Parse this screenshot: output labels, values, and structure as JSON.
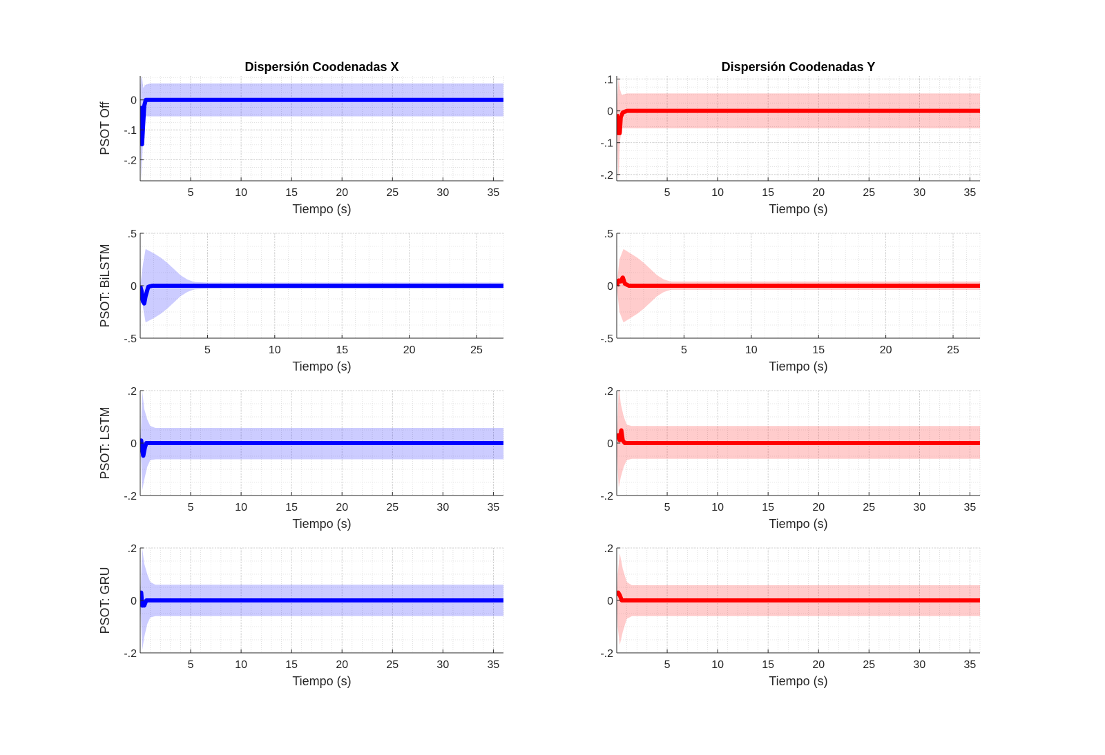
{
  "figure": {
    "titles": [
      "Dispersión Coodenadas X",
      "Dispersión Coodenadas Y"
    ]
  },
  "chart_data": [
    {
      "type": "area",
      "row": 0,
      "col": 0,
      "title": "Dispersión Coodenadas X",
      "xlabel": "Tiempo (s)",
      "ylabel": "PSOT Off",
      "xlim": [
        0,
        36
      ],
      "ylim": [
        -0.27,
        0.08
      ],
      "xticks": [
        5,
        10,
        15,
        20,
        25,
        30,
        35
      ],
      "yticks": [
        -0.2,
        -0.1,
        0
      ],
      "grid": true,
      "minor_grid": true,
      "color": "#0000ff",
      "mean": [
        [
          0,
          -0.02
        ],
        [
          0.08,
          -0.1
        ],
        [
          0.18,
          -0.15
        ],
        [
          0.28,
          -0.09
        ],
        [
          0.4,
          -0.02
        ],
        [
          0.55,
          0
        ],
        [
          36,
          0
        ]
      ],
      "band_upper": [
        [
          0,
          0.01
        ],
        [
          0.1,
          0.08
        ],
        [
          0.2,
          0.07
        ],
        [
          0.3,
          0.04
        ],
        [
          0.5,
          0.05
        ],
        [
          1,
          0.055
        ],
        [
          36,
          0.055
        ]
      ],
      "band_lower": [
        [
          0,
          -0.02
        ],
        [
          0.1,
          -0.27
        ],
        [
          0.2,
          -0.2
        ],
        [
          0.3,
          -0.1
        ],
        [
          0.5,
          -0.055
        ],
        [
          1,
          -0.055
        ],
        [
          36,
          -0.055
        ]
      ]
    },
    {
      "type": "area",
      "row": 0,
      "col": 1,
      "title": "Dispersión Coodenadas Y",
      "xlabel": "Tiempo (s)",
      "ylabel": "",
      "xlim": [
        0,
        36
      ],
      "ylim": [
        -0.22,
        0.11
      ],
      "xticks": [
        5,
        10,
        15,
        20,
        25,
        30,
        35
      ],
      "yticks": [
        -0.2,
        -0.1,
        0,
        0.1
      ],
      "grid": true,
      "minor_grid": true,
      "color": "#ff0000",
      "mean": [
        [
          0,
          -0.01
        ],
        [
          0.08,
          -0.05
        ],
        [
          0.15,
          -0.07
        ],
        [
          0.3,
          -0.07
        ],
        [
          0.4,
          -0.02
        ],
        [
          0.6,
          -0.005
        ],
        [
          1,
          0
        ],
        [
          36,
          0
        ]
      ],
      "band_upper": [
        [
          0,
          0
        ],
        [
          0.1,
          0.06
        ],
        [
          0.2,
          0.11
        ],
        [
          0.3,
          0.07
        ],
        [
          0.5,
          0.05
        ],
        [
          1,
          0.055
        ],
        [
          36,
          0.055
        ]
      ],
      "band_lower": [
        [
          0,
          0
        ],
        [
          0.1,
          -0.15
        ],
        [
          0.2,
          -0.22
        ],
        [
          0.3,
          -0.1
        ],
        [
          0.5,
          -0.055
        ],
        [
          1,
          -0.055
        ],
        [
          36,
          -0.055
        ]
      ]
    },
    {
      "type": "area",
      "row": 1,
      "col": 0,
      "title": "",
      "xlabel": "Tiempo (s)",
      "ylabel": "PSOT: BiLSTM",
      "xlim": [
        0,
        27
      ],
      "ylim": [
        -0.5,
        0.5
      ],
      "xticks": [
        5,
        10,
        15,
        20,
        25
      ],
      "yticks": [
        -0.5,
        0,
        0.5
      ],
      "grid": true,
      "minor_grid": true,
      "color": "#0000ff",
      "mean": [
        [
          0,
          0
        ],
        [
          0.1,
          -0.05
        ],
        [
          0.2,
          -0.15
        ],
        [
          0.3,
          -0.17
        ],
        [
          0.4,
          -0.1
        ],
        [
          0.6,
          -0.01
        ],
        [
          0.9,
          0
        ],
        [
          27,
          0
        ]
      ],
      "band_upper": [
        [
          0,
          0
        ],
        [
          0.2,
          0.2
        ],
        [
          0.4,
          0.35
        ],
        [
          1,
          0.31
        ],
        [
          1.5,
          0.27
        ],
        [
          2,
          0.22
        ],
        [
          2.5,
          0.16
        ],
        [
          3,
          0.1
        ],
        [
          3.5,
          0.06
        ],
        [
          4,
          0.035
        ],
        [
          5,
          0.03
        ],
        [
          27,
          0.03
        ]
      ],
      "band_lower": [
        [
          0,
          0
        ],
        [
          0.2,
          -0.2
        ],
        [
          0.4,
          -0.35
        ],
        [
          1,
          -0.31
        ],
        [
          1.5,
          -0.27
        ],
        [
          2,
          -0.22
        ],
        [
          2.5,
          -0.16
        ],
        [
          3,
          -0.1
        ],
        [
          3.5,
          -0.06
        ],
        [
          4,
          -0.035
        ],
        [
          5,
          -0.03
        ],
        [
          27,
          -0.03
        ]
      ]
    },
    {
      "type": "area",
      "row": 1,
      "col": 1,
      "title": "",
      "xlabel": "Tiempo (s)",
      "ylabel": "",
      "xlim": [
        0,
        27
      ],
      "ylim": [
        -0.5,
        0.5
      ],
      "xticks": [
        5,
        10,
        15,
        20,
        25
      ],
      "yticks": [
        -0.5,
        0,
        0.5
      ],
      "grid": true,
      "minor_grid": true,
      "color": "#ff0000",
      "mean": [
        [
          0,
          0
        ],
        [
          0.15,
          0.05
        ],
        [
          0.3,
          0.04
        ],
        [
          0.45,
          0.08
        ],
        [
          0.6,
          0.02
        ],
        [
          0.9,
          0
        ],
        [
          27,
          0
        ]
      ],
      "band_upper": [
        [
          0,
          0
        ],
        [
          0.2,
          0.25
        ],
        [
          0.5,
          0.35
        ],
        [
          1,
          0.31
        ],
        [
          1.5,
          0.27
        ],
        [
          2,
          0.22
        ],
        [
          2.5,
          0.16
        ],
        [
          3,
          0.1
        ],
        [
          3.5,
          0.06
        ],
        [
          4,
          0.04
        ],
        [
          5,
          0.04
        ],
        [
          27,
          0.04
        ]
      ],
      "band_lower": [
        [
          0,
          0
        ],
        [
          0.2,
          -0.25
        ],
        [
          0.5,
          -0.35
        ],
        [
          1,
          -0.31
        ],
        [
          1.5,
          -0.27
        ],
        [
          2,
          -0.22
        ],
        [
          2.5,
          -0.16
        ],
        [
          3,
          -0.1
        ],
        [
          3.5,
          -0.06
        ],
        [
          4,
          -0.04
        ],
        [
          5,
          -0.04
        ],
        [
          27,
          -0.04
        ]
      ]
    },
    {
      "type": "area",
      "row": 2,
      "col": 0,
      "title": "",
      "xlabel": "Tiempo (s)",
      "ylabel": "PSOT: LSTM",
      "xlim": [
        0,
        36
      ],
      "ylim": [
        -0.2,
        0.2
      ],
      "xticks": [
        5,
        10,
        15,
        20,
        25,
        30,
        35
      ],
      "yticks": [
        -0.2,
        0,
        0.2
      ],
      "grid": true,
      "minor_grid": true,
      "color": "#0000ff",
      "mean": [
        [
          0,
          0
        ],
        [
          0.1,
          0.01
        ],
        [
          0.2,
          -0.02
        ],
        [
          0.3,
          -0.05
        ],
        [
          0.45,
          -0.02
        ],
        [
          0.6,
          0
        ],
        [
          36,
          0
        ]
      ],
      "band_upper": [
        [
          0,
          0
        ],
        [
          0.1,
          0.08
        ],
        [
          0.2,
          0.2
        ],
        [
          0.4,
          0.13
        ],
        [
          0.7,
          0.09
        ],
        [
          1,
          0.065
        ],
        [
          1.5,
          0.058
        ],
        [
          36,
          0.058
        ]
      ],
      "band_lower": [
        [
          0,
          0
        ],
        [
          0.1,
          -0.08
        ],
        [
          0.2,
          -0.18
        ],
        [
          0.4,
          -0.14
        ],
        [
          0.7,
          -0.09
        ],
        [
          1,
          -0.065
        ],
        [
          1.5,
          -0.062
        ],
        [
          36,
          -0.062
        ]
      ]
    },
    {
      "type": "area",
      "row": 2,
      "col": 1,
      "title": "",
      "xlabel": "Tiempo (s)",
      "ylabel": "",
      "xlim": [
        0,
        36
      ],
      "ylim": [
        -0.2,
        0.2
      ],
      "xticks": [
        5,
        10,
        15,
        20,
        25,
        30,
        35
      ],
      "yticks": [
        -0.2,
        0,
        0.2
      ],
      "grid": true,
      "minor_grid": true,
      "color": "#ff0000",
      "mean": [
        [
          0,
          0.02
        ],
        [
          0.15,
          0.03
        ],
        [
          0.3,
          0.01
        ],
        [
          0.45,
          0.05
        ],
        [
          0.6,
          0.01
        ],
        [
          0.8,
          0
        ],
        [
          36,
          0
        ]
      ],
      "band_upper": [
        [
          0,
          0
        ],
        [
          0.1,
          0.1
        ],
        [
          0.2,
          0.22
        ],
        [
          0.4,
          0.15
        ],
        [
          0.7,
          0.1
        ],
        [
          1,
          0.07
        ],
        [
          1.5,
          0.065
        ],
        [
          36,
          0.065
        ]
      ],
      "band_lower": [
        [
          0,
          0
        ],
        [
          0.1,
          -0.1
        ],
        [
          0.2,
          -0.17
        ],
        [
          0.4,
          -0.13
        ],
        [
          0.7,
          -0.09
        ],
        [
          1,
          -0.065
        ],
        [
          1.5,
          -0.06
        ],
        [
          36,
          -0.06
        ]
      ]
    },
    {
      "type": "area",
      "row": 3,
      "col": 0,
      "title": "",
      "xlabel": "Tiempo (s)",
      "ylabel": "PSOT: GRU",
      "xlim": [
        0,
        36
      ],
      "ylim": [
        -0.2,
        0.2
      ],
      "xticks": [
        5,
        10,
        15,
        20,
        25,
        30,
        35
      ],
      "yticks": [
        -0.2,
        0,
        0.2
      ],
      "grid": true,
      "minor_grid": true,
      "color": "#0000ff",
      "mean": [
        [
          0,
          0
        ],
        [
          0.1,
          0.03
        ],
        [
          0.2,
          -0.02
        ],
        [
          0.3,
          -0.01
        ],
        [
          0.4,
          -0.02
        ],
        [
          0.6,
          0
        ],
        [
          36,
          0
        ]
      ],
      "band_upper": [
        [
          0,
          0
        ],
        [
          0.1,
          0.1
        ],
        [
          0.2,
          0.2
        ],
        [
          0.4,
          0.14
        ],
        [
          0.7,
          0.1
        ],
        [
          1,
          0.07
        ],
        [
          1.5,
          0.06
        ],
        [
          36,
          0.06
        ]
      ],
      "band_lower": [
        [
          0,
          0
        ],
        [
          0.1,
          -0.1
        ],
        [
          0.2,
          -0.19
        ],
        [
          0.4,
          -0.14
        ],
        [
          0.7,
          -0.09
        ],
        [
          1,
          -0.065
        ],
        [
          1.5,
          -0.06
        ],
        [
          36,
          -0.06
        ]
      ]
    },
    {
      "type": "area",
      "row": 3,
      "col": 1,
      "title": "",
      "xlabel": "Tiempo (s)",
      "ylabel": "",
      "xlim": [
        0,
        36
      ],
      "ylim": [
        -0.2,
        0.2
      ],
      "xticks": [
        5,
        10,
        15,
        20,
        25,
        30,
        35
      ],
      "yticks": [
        -0.2,
        0,
        0.2
      ],
      "grid": true,
      "minor_grid": true,
      "color": "#ff0000",
      "mean": [
        [
          0,
          0.02
        ],
        [
          0.15,
          0.03
        ],
        [
          0.3,
          0.02
        ],
        [
          0.5,
          0
        ],
        [
          36,
          0
        ]
      ],
      "band_upper": [
        [
          0,
          0
        ],
        [
          0.1,
          0.1
        ],
        [
          0.3,
          0.18
        ],
        [
          0.6,
          0.12
        ],
        [
          1,
          0.07
        ],
        [
          1.5,
          0.058
        ],
        [
          36,
          0.058
        ]
      ],
      "band_lower": [
        [
          0,
          0
        ],
        [
          0.1,
          -0.1
        ],
        [
          0.3,
          -0.17
        ],
        [
          0.6,
          -0.12
        ],
        [
          1,
          -0.07
        ],
        [
          1.5,
          -0.06
        ],
        [
          36,
          -0.06
        ]
      ]
    }
  ]
}
